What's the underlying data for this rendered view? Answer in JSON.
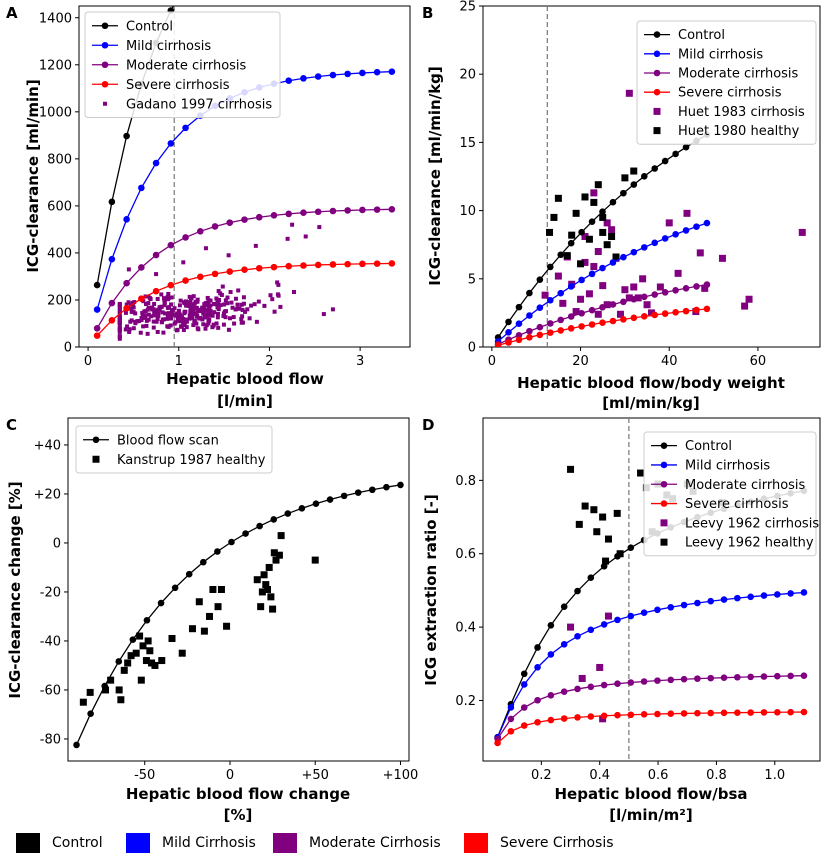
{
  "figure": {
    "bottom_legend": [
      {
        "label": "Control",
        "color": "#000000"
      },
      {
        "label": "Mild Cirrhosis",
        "color": "#0000ff"
      },
      {
        "label": "Moderate Cirrhosis",
        "color": "#800080"
      },
      {
        "label": "Severe Cirrhosis",
        "color": "#ff0000"
      }
    ]
  },
  "chart_data": [
    {
      "panel": "A",
      "type": "line+scatter",
      "xlabel": [
        "Hepatic blood flow",
        "[l/min]"
      ],
      "ylabel": "ICG-clearance [ml/min]",
      "xlim": [
        -0.1,
        3.55
      ],
      "ylim": [
        0,
        1450
      ],
      "xticks": [
        0,
        1,
        2,
        3
      ],
      "xtick_labels": [
        "0",
        "1",
        "2",
        "3"
      ],
      "yticks": [
        0,
        200,
        400,
        600,
        800,
        1000,
        1200,
        1400
      ],
      "ytick_labels": [
        "0",
        "200",
        "400",
        "600",
        "800",
        "1000",
        "1200",
        "1400"
      ],
      "vline": 0.95,
      "legend_position": "top-left",
      "series": [
        {
          "name": "Control",
          "color": "#000000",
          "type": "line",
          "model": {
            "a": 1950,
            "k": 1.45
          },
          "x_range": [
            0.1,
            3.35
          ],
          "n": 21
        },
        {
          "name": "Mild cirrhosis",
          "color": "#0000ff",
          "type": "line",
          "model": {
            "a": 1180,
            "k": 1.45
          },
          "x_range": [
            0.1,
            3.35
          ],
          "n": 21
        },
        {
          "name": "Moderate cirrhosis",
          "color": "#800080",
          "type": "line",
          "model": {
            "a": 590,
            "k": 1.45
          },
          "x_range": [
            0.1,
            3.35
          ],
          "n": 21
        },
        {
          "name": "Severe cirrhosis",
          "color": "#ff0000",
          "type": "line",
          "model": {
            "a": 358,
            "k": 1.45
          },
          "x_range": [
            0.1,
            3.35
          ],
          "n": 21
        },
        {
          "name": "Gadano 1997 cirrhosis",
          "color": "#800080",
          "type": "scatter-cloud",
          "marker": "square-small",
          "cloud": {
            "n": 330,
            "x_min": 0.35,
            "x_max": 2.7,
            "x_center": 1.05,
            "y_base": 150,
            "y_spread": 70,
            "y_slope": 35,
            "seed": 7
          },
          "extra": [
            [
              0.45,
              330
            ],
            [
              0.75,
              310
            ],
            [
              1.3,
              420
            ],
            [
              1.55,
              390
            ],
            [
              1.85,
              430
            ],
            [
              2.2,
              460
            ],
            [
              2.4,
              470
            ],
            [
              2.55,
              510
            ],
            [
              2.25,
              520
            ],
            [
              1.05,
              360
            ],
            [
              2.6,
              140
            ],
            [
              2.7,
              160
            ]
          ]
        }
      ]
    },
    {
      "panel": "B",
      "type": "line+scatter",
      "xlabel": [
        "Hepatic blood flow/body weight",
        "[ml/min/kg]"
      ],
      "ylabel": "ICG-clearance [ml/min/kg]",
      "xlim": [
        -2,
        74
      ],
      "ylim": [
        0,
        25
      ],
      "xticks": [
        0,
        20,
        40,
        60
      ],
      "xtick_labels": [
        "0",
        "20",
        "40",
        "60"
      ],
      "yticks": [
        0,
        5,
        10,
        15,
        20,
        25
      ],
      "ytick_labels": [
        "0",
        "5",
        "10",
        "15",
        "20",
        "25"
      ],
      "vline": 12.5,
      "legend_position": "top-right",
      "series": [
        {
          "name": "Control",
          "color": "#000000",
          "type": "line",
          "model": {
            "a": 24.5,
            "k": 0.0208
          },
          "x_range": [
            1.4,
            48.5
          ],
          "n": 21
        },
        {
          "name": "Mild cirrhosis",
          "color": "#0000ff",
          "type": "line",
          "model": {
            "a": 14.3,
            "k": 0.0208
          },
          "x_range": [
            1.4,
            48.5
          ],
          "n": 21
        },
        {
          "name": "Moderate cirrhosis",
          "color": "#800080",
          "type": "line",
          "model": {
            "a": 7.2,
            "k": 0.0208
          },
          "x_range": [
            1.4,
            48.5
          ],
          "n": 21
        },
        {
          "name": "Severe cirrhosis",
          "color": "#ff0000",
          "type": "line",
          "model": {
            "a": 4.4,
            "k": 0.0208
          },
          "x_range": [
            1.4,
            48.5
          ],
          "n": 21
        },
        {
          "name": "Huet 1983 cirrhosis",
          "color": "#800080",
          "type": "scatter",
          "marker": "square",
          "points": [
            [
              12,
              3.8
            ],
            [
              15,
              5.2
            ],
            [
              16,
              3.2
            ],
            [
              17,
              6.6
            ],
            [
              18,
              4.6
            ],
            [
              19,
              2.6
            ],
            [
              20,
              3.5
            ],
            [
              21,
              6.2
            ],
            [
              21,
              8.1
            ],
            [
              22,
              3.9
            ],
            [
              23,
              5.9
            ],
            [
              23,
              11.3
            ],
            [
              24,
              7.0
            ],
            [
              24,
              2.4
            ],
            [
              25,
              4.5
            ],
            [
              26,
              3.1
            ],
            [
              26,
              9.1
            ],
            [
              27,
              8.6
            ],
            [
              28,
              6.5
            ],
            [
              29,
              2.4
            ],
            [
              30,
              4.2
            ],
            [
              31,
              3.6
            ],
            [
              32,
              4.4
            ],
            [
              33,
              3.6
            ],
            [
              34,
              5.0
            ],
            [
              35,
              3.1
            ],
            [
              36,
              2.5
            ],
            [
              38,
              4.4
            ],
            [
              40,
              9.1
            ],
            [
              42,
              5.4
            ],
            [
              44,
              9.8
            ],
            [
              46,
              2.6
            ],
            [
              47,
              6.9
            ],
            [
              48,
              4.3
            ],
            [
              52,
              6.5
            ],
            [
              57,
              3.0
            ],
            [
              58,
              3.5
            ],
            [
              70,
              8.4
            ],
            [
              31,
              18.6
            ]
          ]
        },
        {
          "name": "Huet 1980 healthy",
          "color": "#000000",
          "type": "scatter",
          "marker": "square",
          "points": [
            [
              13,
              8.4
            ],
            [
              14,
              9.5
            ],
            [
              15,
              10.9
            ],
            [
              17,
              6.7
            ],
            [
              18,
              8.2
            ],
            [
              19,
              9.8
            ],
            [
              20,
              6.1
            ],
            [
              21,
              11.0
            ],
            [
              22,
              7.9
            ],
            [
              23,
              10.6
            ],
            [
              24,
              11.9
            ],
            [
              25,
              8.4
            ],
            [
              26,
              7.5
            ],
            [
              27,
              8.1
            ],
            [
              28,
              6.6
            ],
            [
              30,
              12.4
            ],
            [
              32,
              12.9
            ],
            [
              25,
              9.5
            ]
          ]
        }
      ]
    },
    {
      "panel": "C",
      "type": "line+scatter",
      "xlabel": [
        "Hepatic blood flow change",
        "[%]"
      ],
      "ylabel": "ICG-clearance change [%]",
      "xlim": [
        -95,
        105
      ],
      "ylim": [
        -89,
        51
      ],
      "xticks": [
        -50,
        0,
        50,
        100
      ],
      "xtick_labels": [
        "-50",
        "0",
        "+50",
        "+100"
      ],
      "yticks": [
        -80,
        -60,
        -40,
        -20,
        0,
        20,
        40
      ],
      "ytick_labels": [
        "-80",
        "-60",
        "-40",
        "-20",
        "0",
        "+20",
        "+40"
      ],
      "legend_position": "top-left",
      "series": [
        {
          "name": "Blood flow scan",
          "color": "#000000",
          "type": "line-pct",
          "model": {
            "k": 0.0144
          },
          "x_range": [
            -90,
            100
          ],
          "n": 24
        },
        {
          "name": "Kanstrup 1987 healthy",
          "color": "#000000",
          "type": "scatter",
          "marker": "square",
          "points": [
            [
              -86,
              -65
            ],
            [
              -82,
              -61
            ],
            [
              -73,
              -60
            ],
            [
              -70,
              -56
            ],
            [
              -65,
              -60
            ],
            [
              -64,
              -64
            ],
            [
              -62,
              -52
            ],
            [
              -60,
              -49
            ],
            [
              -58,
              -46
            ],
            [
              -55,
              -45
            ],
            [
              -53,
              -38
            ],
            [
              -52,
              -56
            ],
            [
              -51,
              -42
            ],
            [
              -49,
              -48
            ],
            [
              -48,
              -40
            ],
            [
              -47,
              -44
            ],
            [
              -46,
              -49
            ],
            [
              -44,
              -50
            ],
            [
              -40,
              -48
            ],
            [
              -34,
              -39
            ],
            [
              -28,
              -45
            ],
            [
              -22,
              -35
            ],
            [
              -18,
              -24
            ],
            [
              -15,
              -36
            ],
            [
              -12,
              -30
            ],
            [
              -10,
              -19
            ],
            [
              -7,
              -26
            ],
            [
              -5,
              -19
            ],
            [
              -2,
              -34
            ],
            [
              16,
              -15
            ],
            [
              18,
              -26
            ],
            [
              19,
              -20
            ],
            [
              20,
              -13
            ],
            [
              21,
              -17
            ],
            [
              22,
              -19
            ],
            [
              23,
              -10
            ],
            [
              24,
              -22
            ],
            [
              25,
              -27
            ],
            [
              26,
              -4
            ],
            [
              27,
              -7
            ],
            [
              29,
              -5
            ],
            [
              30,
              3
            ],
            [
              50,
              -7
            ]
          ]
        }
      ]
    },
    {
      "panel": "D",
      "type": "line+scatter",
      "xlabel": [
        "Hepatic blood flow/bsa",
        "[l/min/m²]"
      ],
      "ylabel": "ICG extraction ratio [-]",
      "xlim": [
        0.0,
        1.155
      ],
      "ylim": [
        0.035,
        0.97
      ],
      "xticks": [
        0.2,
        0.4,
        0.6,
        0.8,
        1.0
      ],
      "xtick_labels": [
        "0.2",
        "0.4",
        "0.6",
        "0.8",
        "1.0"
      ],
      "yticks": [
        0.2,
        0.4,
        0.6,
        0.8
      ],
      "ytick_labels": [
        "0.2",
        "0.4",
        "0.6",
        "0.8"
      ],
      "vline": 0.5,
      "legend_position": "top-right",
      "series": [
        {
          "name": "Control",
          "color": "#000000",
          "type": "line",
          "model": {
            "a": 0.95,
            "b": 0.475
          },
          "x_range": [
            0.05,
            1.1
          ],
          "n": 24
        },
        {
          "name": "Mild cirrhosis",
          "color": "#0000ff",
          "type": "line",
          "model": {
            "a": 0.56,
            "b": 0.28
          },
          "x_range": [
            0.05,
            1.1
          ],
          "n": 24
        },
        {
          "name": "Moderate cirrhosis",
          "color": "#800080",
          "type": "line",
          "model": {
            "a": 0.285,
            "b": 0.14
          },
          "x_range": [
            0.05,
            1.1
          ],
          "n": 24
        },
        {
          "name": "Severe cirrhosis",
          "color": "#ff0000",
          "type": "line",
          "model": {
            "a": 0.175,
            "b": 0.085
          },
          "x_range": [
            0.05,
            1.1
          ],
          "n": 24
        },
        {
          "name": "Leevy 1962 cirrhosis",
          "color": "#800080",
          "type": "scatter",
          "marker": "square",
          "points": [
            [
              0.3,
              0.4
            ],
            [
              0.34,
              0.26
            ],
            [
              0.4,
              0.29
            ],
            [
              0.41,
              0.15
            ],
            [
              0.43,
              0.43
            ]
          ]
        },
        {
          "name": "Leevy 1962 healthy",
          "color": "#000000",
          "type": "scatter",
          "marker": "square",
          "points": [
            [
              0.3,
              0.83
            ],
            [
              0.33,
              0.68
            ],
            [
              0.35,
              0.73
            ],
            [
              0.38,
              0.72
            ],
            [
              0.39,
              0.66
            ],
            [
              0.41,
              0.7
            ],
            [
              0.42,
              0.58
            ],
            [
              0.43,
              0.64
            ],
            [
              0.46,
              0.71
            ],
            [
              0.47,
              0.6
            ],
            [
              0.54,
              0.82
            ],
            [
              0.56,
              0.78
            ],
            [
              0.58,
              0.66
            ],
            [
              0.6,
              0.79
            ],
            [
              0.63,
              0.76
            ],
            [
              0.65,
              0.75
            ],
            [
              0.7,
              0.79
            ],
            [
              0.72,
              0.77
            ],
            [
              0.82,
              0.74
            ]
          ]
        }
      ]
    }
  ]
}
